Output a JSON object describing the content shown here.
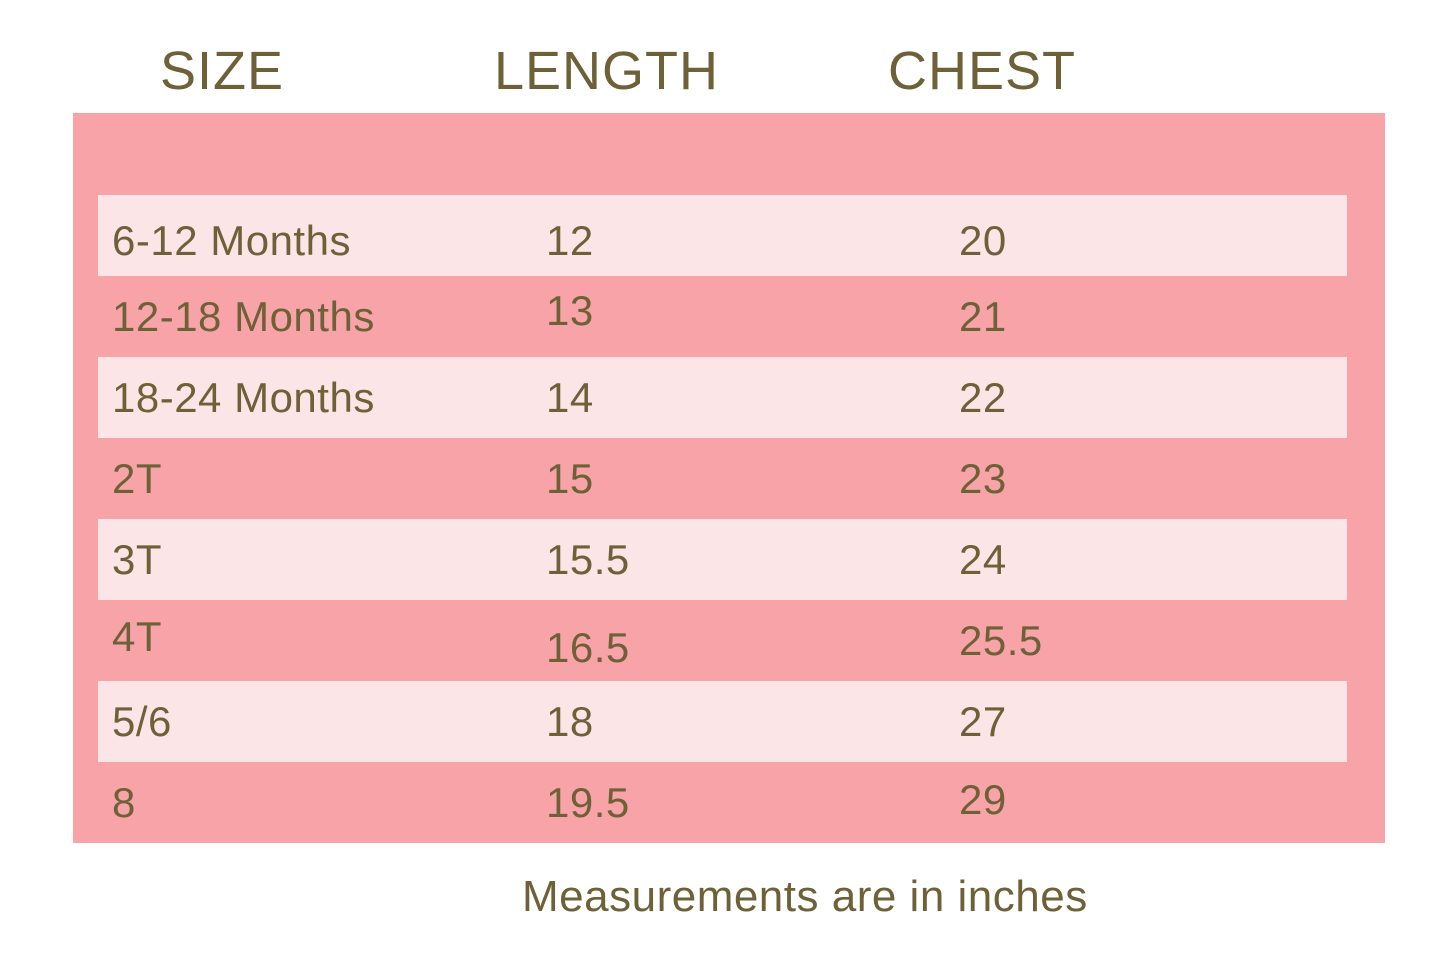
{
  "chart_data": {
    "type": "table",
    "title": "",
    "columns": [
      "SIZE",
      "LENGTH",
      "CHEST"
    ],
    "rows": [
      {
        "size": "6-12 Months",
        "length": "12",
        "chest": "20"
      },
      {
        "size": "12-18 Months",
        "length": "13",
        "chest": "21"
      },
      {
        "size": "18-24 Months",
        "length": "14",
        "chest": "22"
      },
      {
        "size": "2T",
        "length": "15",
        "chest": "23"
      },
      {
        "size": "3T",
        "length": "15.5",
        "chest": "24"
      },
      {
        "size": "4T",
        "length": "16.5",
        "chest": "25.5"
      },
      {
        "size": "5/6",
        "length": "18",
        "chest": "27"
      },
      {
        "size": "8",
        "length": "19.5",
        "chest": "29"
      }
    ],
    "note": "Measurements are in inches",
    "layout_hints": {
      "row_striping": "alternating light bands on rows 1,3,5,7 (0-indexed even rows)",
      "grid": "off"
    }
  },
  "colors": {
    "panel_pink": "#F7A3A8",
    "row_band_light_pink": "#FCE5E7",
    "text_olive": "#6E6138",
    "page_background": "#FFFFFF"
  }
}
